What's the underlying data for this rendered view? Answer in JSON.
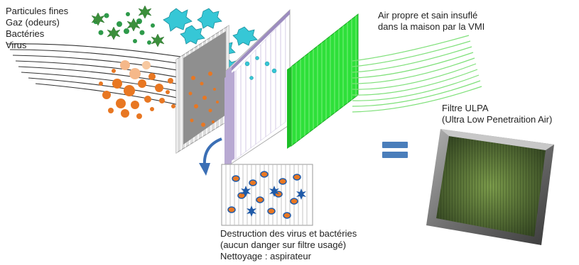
{
  "labels": {
    "pollutants": [
      "Particules fines",
      "Gaz (odeurs)",
      "Bactéries",
      "Virus"
    ],
    "clean_air": [
      "Air propre et sain insuflé",
      "dans la maison par la VMI"
    ],
    "ulpa": [
      "Filtre ULPA",
      "(Ultra Low Penetraition Air)"
    ],
    "destruction": [
      "Destruction des virus et bactéries",
      "(aucun danger sur filtre usagé)",
      "Nettoyage : aspirateur"
    ]
  },
  "colors": {
    "fine_particles": "#e87722",
    "gas": "#2e9a4a",
    "bacteria": "#36c7d6",
    "virus": "#1f5aa8",
    "filter_grey": "#c9c9c9",
    "filter_purple": "#b8a9d2",
    "filter_green": "#2ee03a",
    "clean_air_lines": "#7fe07a",
    "equals_sign": "#4a7ebb",
    "arrow": "#3b6fb5",
    "ulpa_frame": "#7d7d7d",
    "ulpa_mesh": "#55703a"
  }
}
